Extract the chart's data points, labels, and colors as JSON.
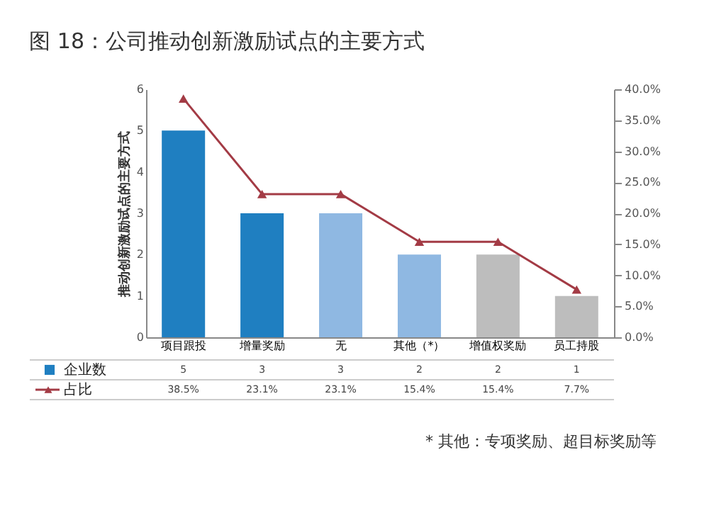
{
  "chart_data": {
    "type": "bar",
    "title": "图 18：公司推动创新激励试点的主要方式",
    "ylabel": "推动创新激励试点的主要方式",
    "categories": [
      "项目跟投",
      "增量奖励",
      "无",
      "其他（*）",
      "增值权奖励",
      "员工持股"
    ],
    "series": [
      {
        "name": "企业数",
        "colors": [
          "#1f7fc1",
          "#1f7fc1",
          "#8fb8e2",
          "#8fb8e2",
          "#bdbdbd",
          "#bdbdbd"
        ],
        "values": [
          5,
          3,
          3,
          2,
          2,
          1
        ],
        "value_labels": [
          "5",
          "3",
          "3",
          "2",
          "2",
          "1"
        ]
      },
      {
        "name": "占比",
        "type": "line",
        "axis": "y2",
        "color": "#a33b45",
        "marker": "triangle",
        "values": [
          38.5,
          23.1,
          23.1,
          15.4,
          15.4,
          7.7
        ],
        "value_labels": [
          "38.5%",
          "23.1%",
          "23.1%",
          "15.4%",
          "15.4%",
          "7.7%"
        ]
      }
    ],
    "ylim": [
      0,
      6
    ],
    "yticks": [
      0,
      1,
      2,
      3,
      4,
      5,
      6
    ],
    "y2lim": [
      0,
      40
    ],
    "y2ticks": [
      {
        "value": 0,
        "label": "0.0%"
      },
      {
        "value": 5,
        "label": "5.0%"
      },
      {
        "value": 10,
        "label": "10.0%"
      },
      {
        "value": 15,
        "label": "15.0%"
      },
      {
        "value": 20,
        "label": "20.0%"
      },
      {
        "value": 25,
        "label": "25.0%"
      },
      {
        "value": 30,
        "label": "30.0%"
      },
      {
        "value": 35,
        "label": "35.0%"
      },
      {
        "value": 40,
        "label": "40.0%"
      }
    ],
    "legend": "bottom left",
    "grid": false,
    "annotations": [
      "* 其他：专项奖励、超目标奖励等"
    ]
  }
}
